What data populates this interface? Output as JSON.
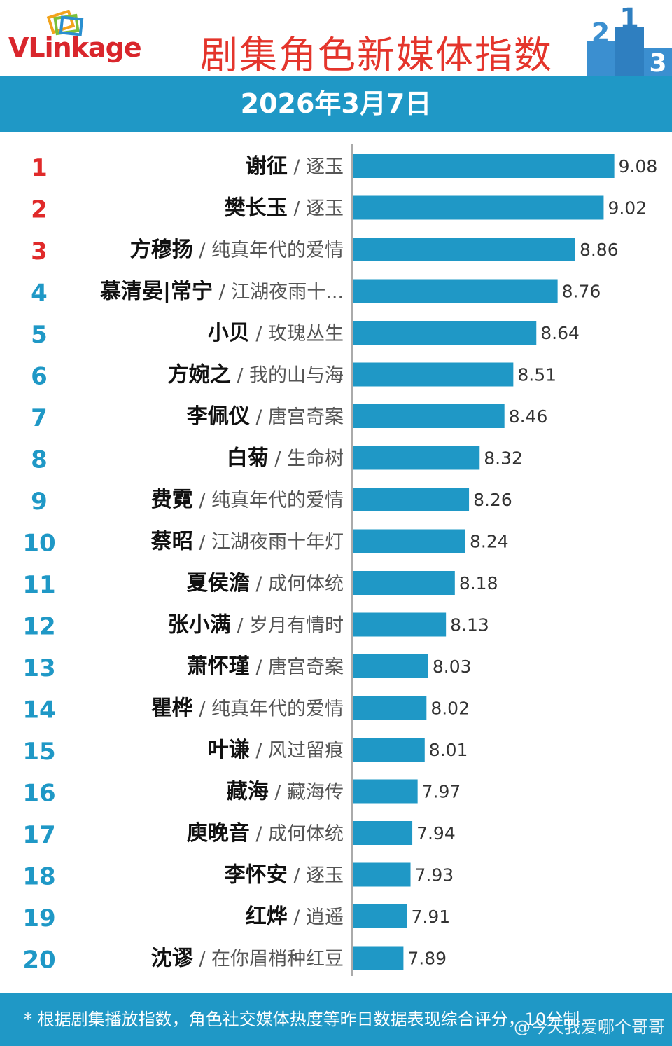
{
  "header": {
    "logo_text_v": "V",
    "logo_text_rest": "Linkage",
    "title": "剧集角色新媒体指数",
    "podium_labels": [
      "2",
      "1",
      "3"
    ]
  },
  "date": "2026年3月7日",
  "colors": {
    "bar": "#1f98c6",
    "rank_top3": "#e02a2a",
    "rank_other": "#1f98c6",
    "title": "#e4352c"
  },
  "chart_data": {
    "type": "bar",
    "orientation": "horizontal",
    "xlim": [
      7.6,
      9.2
    ],
    "grid": false,
    "rows": [
      {
        "rank": "1",
        "character": "谢征",
        "drama": "逐玉",
        "value": 9.08
      },
      {
        "rank": "2",
        "character": "樊长玉",
        "drama": "逐玉",
        "value": 9.02
      },
      {
        "rank": "3",
        "character": "方穆扬",
        "drama": "纯真年代的爱情",
        "value": 8.86
      },
      {
        "rank": "4",
        "character": "慕清晏|常宁",
        "drama": "江湖夜雨十...",
        "value": 8.76
      },
      {
        "rank": "5",
        "character": "小贝",
        "drama": "玫瑰丛生",
        "value": 8.64
      },
      {
        "rank": "6",
        "character": "方婉之",
        "drama": "我的山与海",
        "value": 8.51
      },
      {
        "rank": "7",
        "character": "李佩仪",
        "drama": "唐宫奇案",
        "value": 8.46
      },
      {
        "rank": "8",
        "character": "白菊",
        "drama": "生命树",
        "value": 8.32
      },
      {
        "rank": "9",
        "character": "费霓",
        "drama": "纯真年代的爱情",
        "value": 8.26
      },
      {
        "rank": "10",
        "character": "蔡昭",
        "drama": "江湖夜雨十年灯",
        "value": 8.24
      },
      {
        "rank": "11",
        "character": "夏侯澹",
        "drama": "成何体统",
        "value": 8.18
      },
      {
        "rank": "12",
        "character": "张小满",
        "drama": "岁月有情时",
        "value": 8.13
      },
      {
        "rank": "13",
        "character": "萧怀瑾",
        "drama": "唐宫奇案",
        "value": 8.03
      },
      {
        "rank": "14",
        "character": "瞿桦",
        "drama": "纯真年代的爱情",
        "value": 8.02
      },
      {
        "rank": "15",
        "character": "叶谦",
        "drama": "风过留痕",
        "value": 8.01
      },
      {
        "rank": "16",
        "character": "藏海",
        "drama": "藏海传",
        "value": 7.97
      },
      {
        "rank": "17",
        "character": "庾晚音",
        "drama": "成何体统",
        "value": 7.94
      },
      {
        "rank": "18",
        "character": "李怀安",
        "drama": "逐玉",
        "value": 7.93
      },
      {
        "rank": "19",
        "character": "红烨",
        "drama": "逍遥",
        "value": 7.91
      },
      {
        "rank": "20",
        "character": "沈谬",
        "drama": "在你眉梢种红豆",
        "value": 7.89
      }
    ]
  },
  "footer": {
    "note": "* 根据剧集播放指数，角色社交媒体热度等昨日数据表现综合评分，10分制",
    "watermark": "@今天我爱哪个哥哥"
  }
}
